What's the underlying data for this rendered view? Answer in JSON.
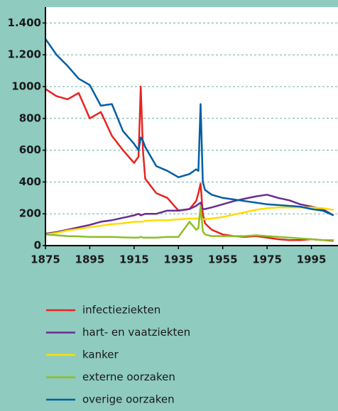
{
  "chart_data": {
    "type": "line",
    "x": [
      1875,
      1880,
      1885,
      1890,
      1895,
      1900,
      1905,
      1910,
      1915,
      1917,
      1918,
      1919,
      1920,
      1925,
      1930,
      1935,
      1940,
      1943,
      1944,
      1945,
      1946,
      1947,
      1950,
      1955,
      1960,
      1965,
      1970,
      1975,
      1980,
      1985,
      1990,
      1995,
      2000,
      2005
    ],
    "series": [
      {
        "name": "infectieziekten",
        "color": "#e52421",
        "values": [
          985,
          940,
          920,
          960,
          800,
          840,
          690,
          600,
          520,
          560,
          1000,
          600,
          420,
          330,
          300,
          220,
          230,
          280,
          330,
          390,
          200,
          140,
          100,
          70,
          60,
          55,
          60,
          50,
          40,
          35,
          35,
          40,
          35,
          30
        ]
      },
      {
        "name": "hart- en vaatziekten",
        "color": "#6a2c91",
        "values": [
          75,
          85,
          100,
          115,
          130,
          150,
          160,
          175,
          190,
          200,
          190,
          195,
          200,
          200,
          220,
          220,
          230,
          250,
          260,
          270,
          230,
          230,
          240,
          260,
          280,
          295,
          310,
          320,
          300,
          285,
          260,
          245,
          230,
          190
        ]
      },
      {
        "name": "kanker",
        "color": "#ffdd00",
        "values": [
          70,
          80,
          95,
          105,
          115,
          125,
          135,
          140,
          150,
          150,
          150,
          150,
          155,
          160,
          160,
          165,
          170,
          170,
          170,
          180,
          165,
          165,
          170,
          180,
          195,
          210,
          225,
          235,
          240,
          240,
          240,
          240,
          235,
          225
        ]
      },
      {
        "name": "externe oorzaken",
        "color": "#8cbf26",
        "values": [
          70,
          65,
          60,
          58,
          55,
          55,
          55,
          52,
          50,
          50,
          55,
          50,
          50,
          50,
          55,
          55,
          150,
          100,
          110,
          250,
          90,
          70,
          60,
          60,
          60,
          60,
          65,
          60,
          55,
          50,
          45,
          40,
          35,
          35
        ]
      },
      {
        "name": "overige oorzaken",
        "color": "#005ea5",
        "values": [
          1300,
          1200,
          1130,
          1050,
          1010,
          880,
          890,
          720,
          640,
          600,
          680,
          660,
          620,
          500,
          470,
          430,
          450,
          480,
          470,
          890,
          400,
          350,
          320,
          300,
          290,
          280,
          270,
          260,
          255,
          250,
          245,
          230,
          220,
          190
        ]
      }
    ],
    "xlim": [
      1875,
      2007
    ],
    "xticks": [
      1875,
      1895,
      1915,
      1935,
      1955,
      1975,
      1995
    ],
    "ylim": [
      0,
      1500
    ],
    "yticks": [
      0,
      200,
      400,
      600,
      800,
      1000,
      {
        "value": 1200,
        "label": "1.200"
      },
      {
        "value": 1400,
        "label": "1.400"
      }
    ],
    "grid": true
  }
}
